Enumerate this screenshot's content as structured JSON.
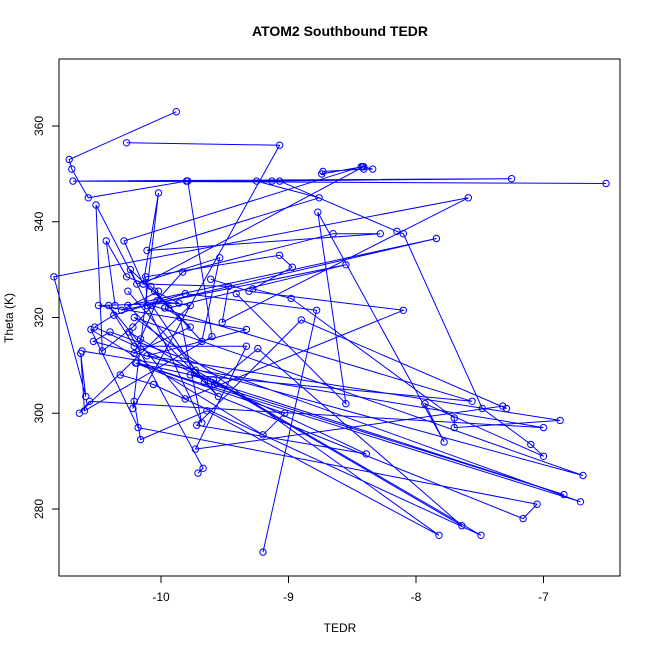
{
  "chart_data": {
    "type": "line",
    "title": "ATOM2 Southbound TEDR",
    "xlabel": "TEDR",
    "ylabel": "Theta (K)",
    "xlim": [
      -10.8,
      -6.4
    ],
    "ylim": [
      266,
      374
    ],
    "xticks": [
      -10,
      -9,
      -8,
      -7
    ],
    "yticks": [
      280,
      300,
      320,
      340,
      360
    ],
    "xtick_labels": [
      "-10",
      "-9",
      "-8",
      "-7"
    ],
    "ytick_labels": [
      "280",
      "300",
      "320",
      "340",
      "360"
    ],
    "grid": false,
    "legend": "none",
    "markers": "open-circle",
    "color": "#0000ff",
    "series": [
      {
        "x": [
          -9.88,
          -10.72,
          -10.7,
          -10.57,
          -9.8,
          -9.13,
          -9.07,
          -8.15,
          -8.1,
          -7.48,
          -7.1,
          -7.0,
          -7.93,
          -7.78,
          -8.77,
          -8.55,
          -9.41
        ],
        "y": [
          363,
          353,
          351,
          345,
          348.5,
          348.5,
          348.5,
          338,
          337.5,
          301,
          293.5,
          291,
          302,
          294,
          342,
          302,
          325
        ]
      },
      {
        "x": [
          -10.27,
          -9.07,
          -10.22,
          -10.02,
          -10.14,
          -8.41,
          -8.34,
          -8.41,
          -8.73,
          -8.74,
          -8.42,
          -8.43,
          -10.29,
          -10.14,
          -9.47,
          -9.52,
          -7.59,
          -10.84,
          -10.59,
          -10.63,
          -10.6,
          -9.6,
          -9.79
        ],
        "y": [
          356.5,
          356,
          301,
          346,
          327,
          351.5,
          351,
          351,
          350.5,
          350,
          351.5,
          351.5,
          336,
          327,
          326.5,
          319,
          345,
          328.5,
          303.5,
          312.5,
          300.5,
          316,
          348.5
        ]
      },
      {
        "x": [
          -6.51,
          -10.69,
          -7.25,
          -9.25,
          -8.76,
          -10.11,
          -8.28,
          -8.65,
          -9.83,
          -10.22,
          -10.46,
          -10.51,
          -10.19,
          -9.54,
          -9.68,
          -10.08,
          -10.27,
          -10.43,
          -10.36
        ],
        "y": [
          348,
          348.5,
          349,
          348.5,
          345,
          334,
          337.5,
          337.5,
          329.5,
          318,
          313,
          343.5,
          327,
          332.5,
          315,
          326.5,
          328.5,
          336,
          322.5
        ]
      },
      {
        "x": [
          -10.26,
          -9.55,
          -10.26,
          -7.84,
          -10.11,
          -10.12,
          -9.07,
          -8.97,
          -9.28,
          -8.98,
          -7.7,
          -7.7,
          -6.87,
          -10.11,
          -9.33,
          -10.49,
          -9.86,
          -10.05,
          -9.94,
          -8.55,
          -10.31,
          -10.02
        ],
        "y": [
          325.5,
          303.5,
          322.5,
          336.5,
          322.5,
          328.5,
          333,
          330.5,
          326,
          324,
          299,
          297,
          298.5,
          312,
          317.5,
          322.5,
          323,
          325.5,
          322,
          331,
          321.5,
          325.5
        ]
      },
      {
        "x": [
          -9.61,
          -9.31,
          -8.1,
          -9.81,
          -10.41,
          -10.21,
          -9.33,
          -9.73,
          -7.32,
          -7.29,
          -8.9,
          -9.72,
          -8.39,
          -10.52,
          -10.37,
          -9.81,
          -8.78,
          -9.2
        ],
        "y": [
          328,
          325.5,
          321.5,
          303,
          322.5,
          314,
          314,
          292.5,
          301.5,
          301,
          319.5,
          297.5,
          291.5,
          318,
          320.5,
          325,
          321.5,
          271
        ]
      },
      {
        "x": [
          -10.21,
          -10.16,
          -9.64,
          -7.82,
          -10.21,
          -6.69,
          -10.53,
          -10.4,
          -6.71,
          -10.2,
          -7.16,
          -7.05,
          -10.18,
          -10.55,
          -9.2,
          -9.03,
          -10.19,
          -9.59,
          -7.49,
          -10.06,
          -10.32
        ],
        "y": [
          302.5,
          294.5,
          300.5,
          274.5,
          320,
          287,
          315,
          317,
          281.5,
          310.5,
          278,
          281,
          297,
          317.5,
          295.5,
          300,
          310.5,
          307,
          274.5,
          306,
          308
        ]
      },
      {
        "x": [
          -9.66,
          -6.84,
          -9.77,
          -7.56,
          -10.07,
          -9.73,
          -7.64,
          -9.24,
          -9.58,
          -10.16,
          -10.25,
          -9.67,
          -9.71
        ],
        "y": [
          306.5,
          283,
          308,
          302.5,
          322.5,
          309,
          276.5,
          313.5,
          306,
          315.5,
          317,
          288.5,
          287.5
        ]
      },
      {
        "x": [
          -10.62,
          -7.0,
          -10.56,
          -10.64,
          -9.77,
          -10.03,
          -10.21,
          -9.77,
          -10.24,
          -9.68,
          -9.85,
          -9.97,
          -9.97
        ],
        "y": [
          313,
          297,
          302.5,
          300,
          322.5,
          323.5,
          312.5,
          318,
          330,
          298,
          320,
          322,
          322
        ]
      }
    ]
  }
}
